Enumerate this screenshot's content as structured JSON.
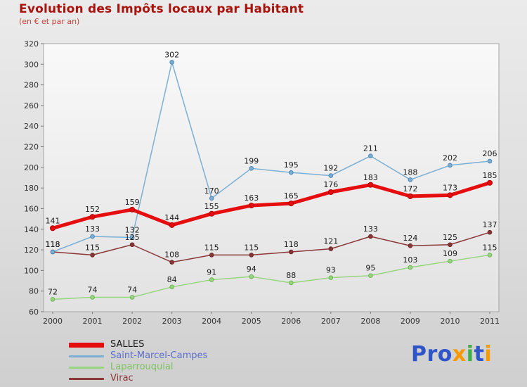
{
  "header": {
    "title": "Evolution des Impôts locaux par Habitant",
    "subtitle": "(en € et par an)"
  },
  "colors": {
    "title": "#a8130d",
    "subtitle": "#c0443a",
    "axis_text": "#333333",
    "value_label": "#1c1c1c",
    "plot_border": "#a5a5a5"
  },
  "chart_data": {
    "type": "line",
    "title": "Evolution des Impôts locaux par Habitant",
    "subtitle": "(en € et par an)",
    "xlabel": "",
    "ylabel": "",
    "x": [
      2000,
      2001,
      2002,
      2003,
      2004,
      2005,
      2006,
      2007,
      2008,
      2009,
      2010,
      2011
    ],
    "ylim": [
      60,
      320
    ],
    "ytick_step": 20,
    "grid": false,
    "legend_position": "bottom-left",
    "series": [
      {
        "name": "SALLES",
        "color": "#e50d0d",
        "point_stroke": "#b00000",
        "line_width": 5,
        "legend_label_color": "#1a1a1a",
        "values": [
          141,
          152,
          159,
          144,
          155,
          163,
          165,
          176,
          183,
          172,
          173,
          185
        ]
      },
      {
        "name": "Saint-Marcel-Campes",
        "color": "#7bafd4",
        "point_stroke": "#4d86b5",
        "line_width": 1.5,
        "legend_label_color": "#5b6ecc",
        "values": [
          118,
          133,
          132,
          302,
          170,
          199,
          195,
          192,
          211,
          188,
          202,
          206
        ]
      },
      {
        "name": "Laparrouquial",
        "color": "#97d67f",
        "point_stroke": "#6cb457",
        "line_width": 1.5,
        "legend_label_color": "#7cc25e",
        "values": [
          72,
          74,
          74,
          84,
          91,
          94,
          88,
          93,
          95,
          103,
          109,
          115
        ]
      },
      {
        "name": "Virac",
        "color": "#8a3737",
        "point_stroke": "#6b2525",
        "line_width": 1.5,
        "legend_label_color": "#8a3737",
        "values": [
          118,
          115,
          125,
          108,
          115,
          115,
          118,
          121,
          133,
          124,
          125,
          137
        ]
      }
    ]
  },
  "branding": {
    "logo_letters": [
      {
        "ch": "P",
        "color": "#2f55c8"
      },
      {
        "ch": "r",
        "color": "#2f55c8"
      },
      {
        "ch": "o",
        "color": "#2f55c8"
      },
      {
        "ch": "x",
        "color": "#f59b00"
      },
      {
        "ch": "i",
        "color": "#3fae49"
      },
      {
        "ch": "t",
        "color": "#2f55c8"
      },
      {
        "ch": "i",
        "color": "#f59b00"
      }
    ]
  }
}
